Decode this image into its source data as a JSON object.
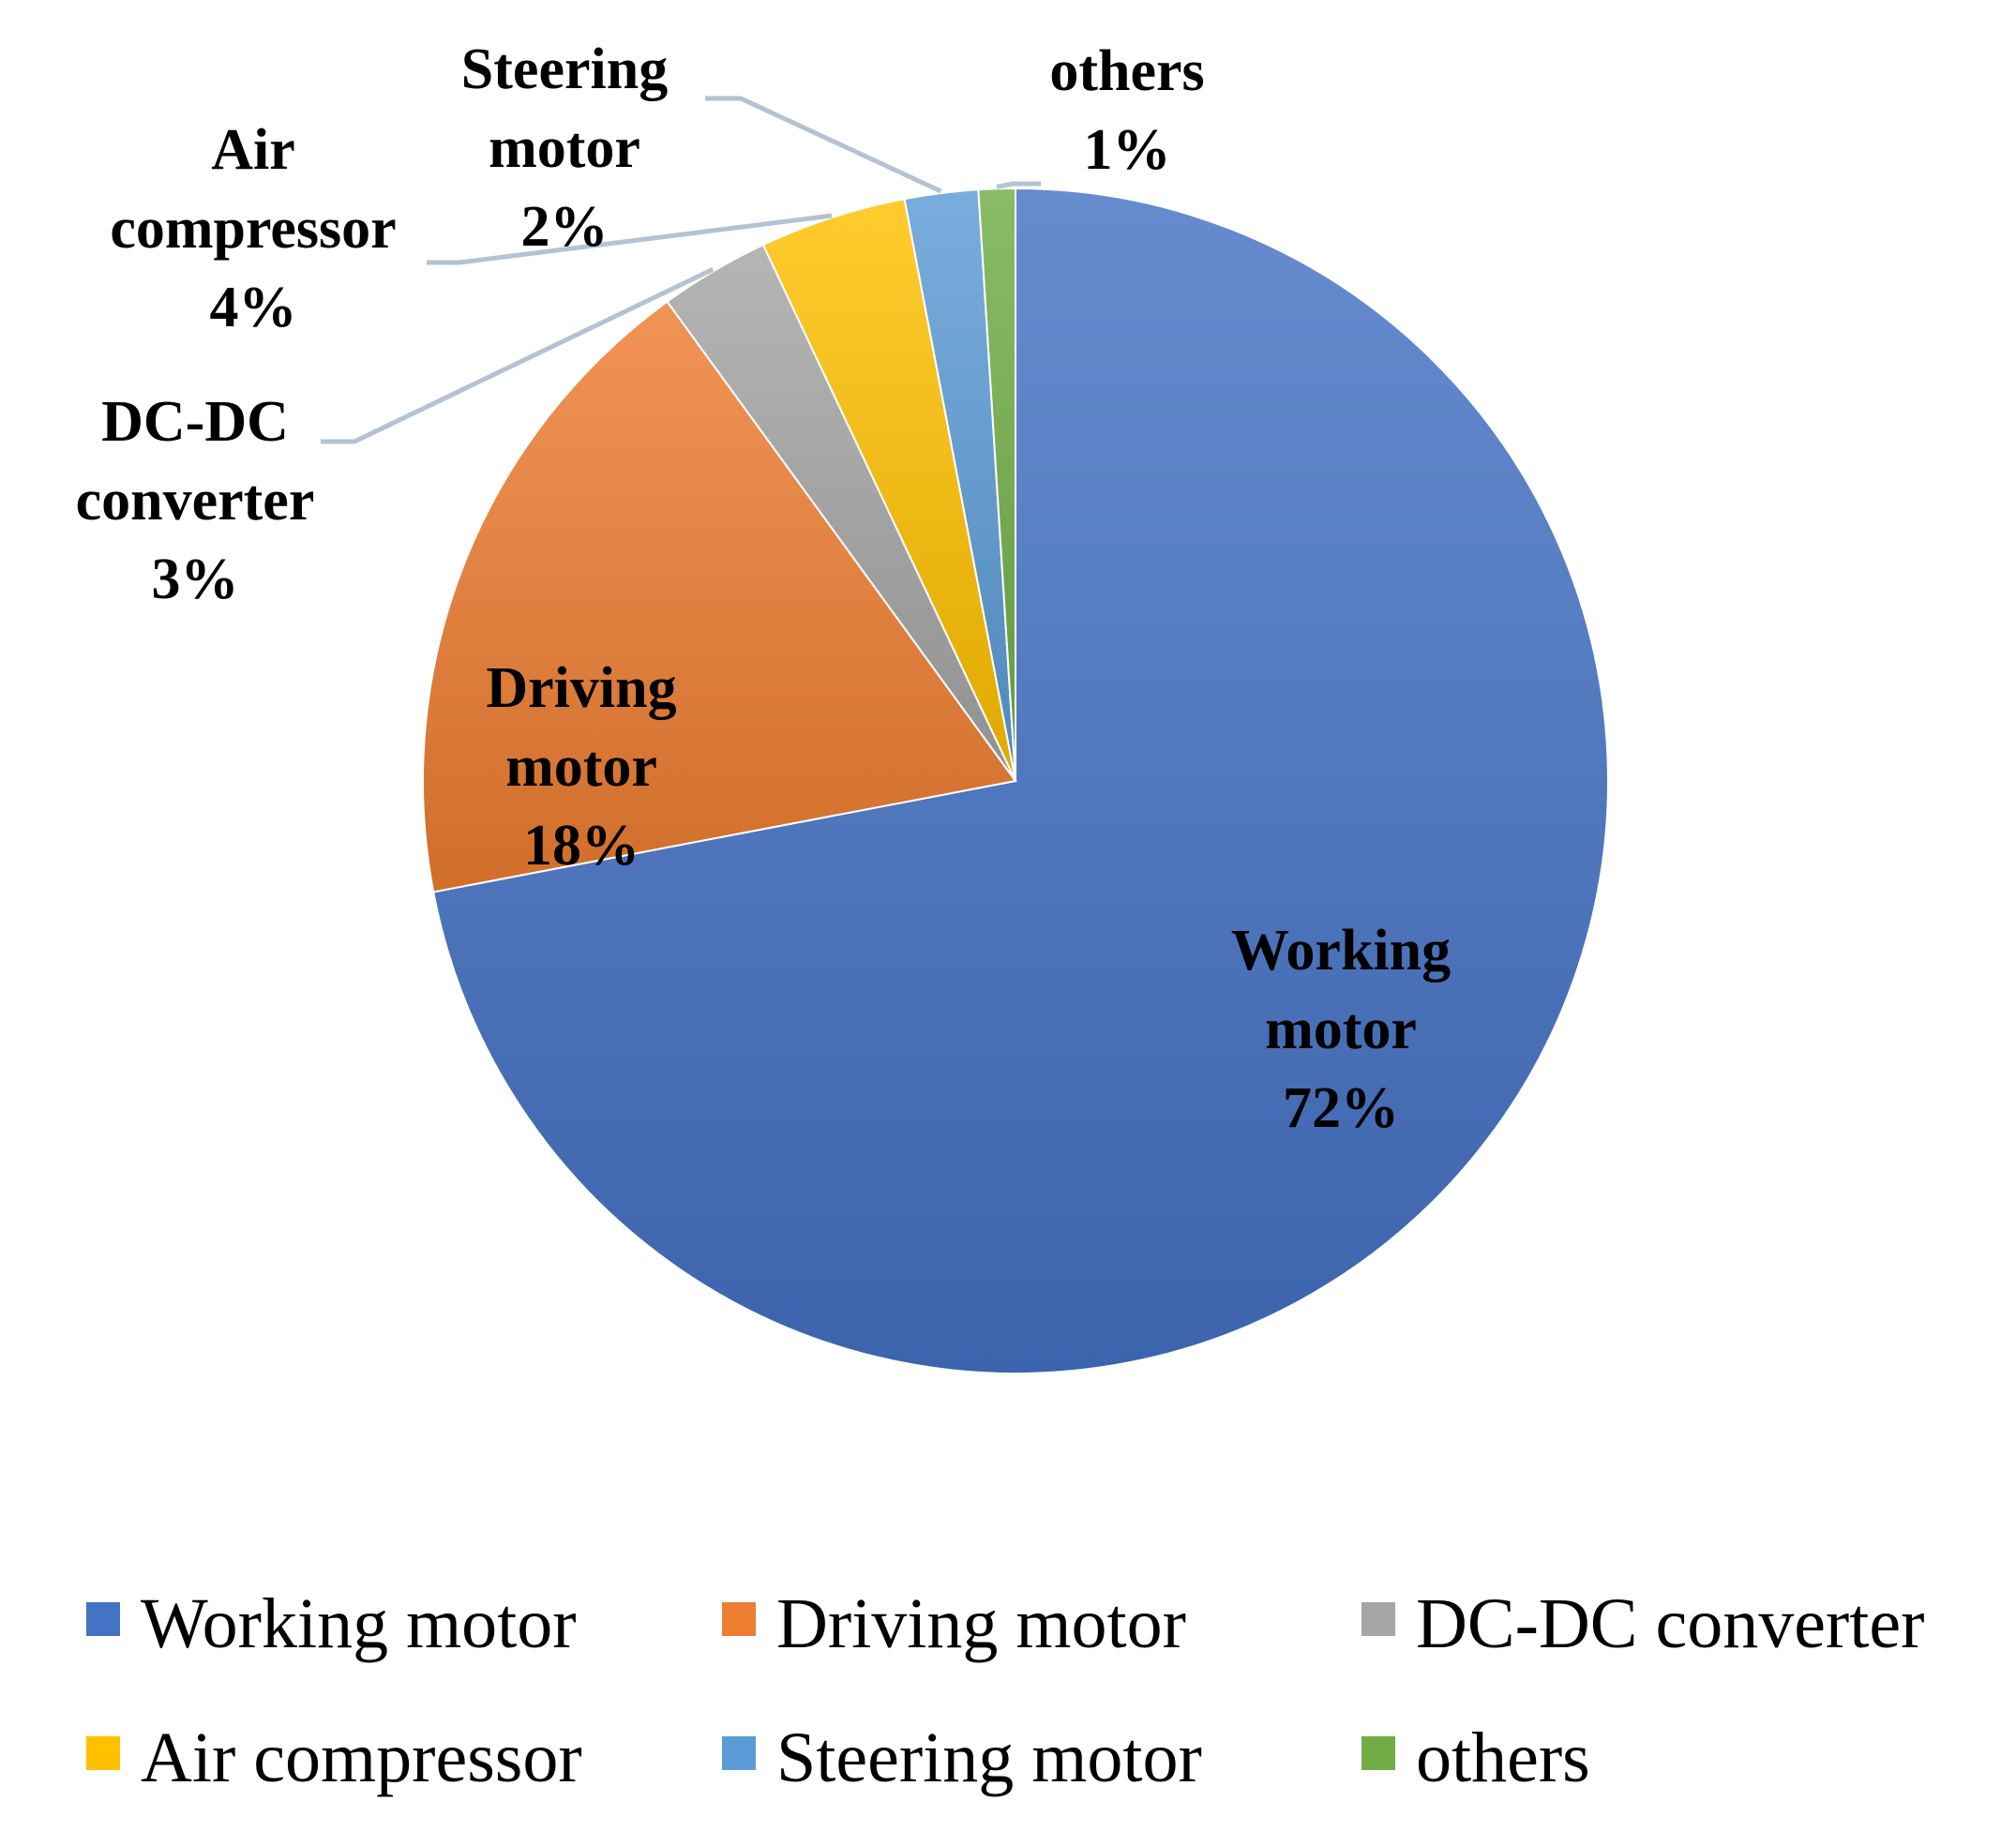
{
  "chart_data": {
    "type": "pie",
    "title": "",
    "slices": [
      {
        "name": "Working motor",
        "value": 72,
        "label_lines": [
          "Working",
          "motor",
          "72%"
        ],
        "color": "#4472C4"
      },
      {
        "name": "Driving motor",
        "value": 18,
        "label_lines": [
          "Driving",
          "motor",
          "18%"
        ],
        "color": "#ED7D31"
      },
      {
        "name": "DC-DC converter",
        "value": 3,
        "label_lines": [
          "DC-DC",
          "converter",
          "3%"
        ],
        "color": "#A5A5A5"
      },
      {
        "name": "Air compressor",
        "value": 4,
        "label_lines": [
          "Air",
          "compressor",
          "4%"
        ],
        "color": "#FFC000"
      },
      {
        "name": "Steering motor",
        "value": 2,
        "label_lines": [
          "Steering",
          "motor",
          "2%"
        ],
        "color": "#5B9BD5"
      },
      {
        "name": "others",
        "value": 1,
        "label_lines": [
          "others",
          "1%"
        ],
        "color": "#70AD47"
      }
    ],
    "start_angle_deg": 0,
    "direction": "clockwise",
    "data_labels": true,
    "leader_lines": true,
    "legend": {
      "position": "bottom",
      "entries": [
        "Working motor",
        "Driving motor",
        "DC-DC converter",
        "Air compressor",
        "Steering motor",
        "others"
      ]
    }
  }
}
